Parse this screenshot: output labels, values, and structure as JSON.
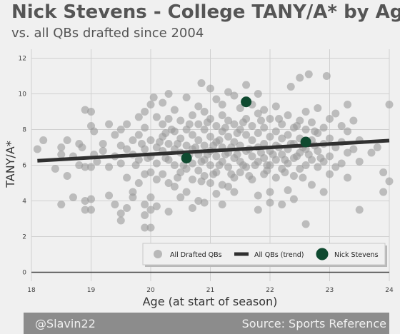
{
  "title": "Nick Stevens - College TANY/A* by Age",
  "subtitle": "vs. all QBs drafted since 2004",
  "footer": {
    "left": "@Slavin22",
    "right": "Source: Sports Reference"
  },
  "colors": {
    "background": "#f0f0f0",
    "grid": "#d0d0d0",
    "points": "#9a9a9a",
    "trend": "#303030",
    "highlight": "#0f4a30",
    "footer": "#8c8c8c"
  },
  "chart_data": {
    "type": "scatter",
    "xlabel": "Age (at start of season)",
    "ylabel": "TANY/A*",
    "xlim": [
      18,
      24
    ],
    "ylim": [
      -0.5,
      12.5
    ],
    "xticks": [
      18,
      19,
      20,
      21,
      22,
      23,
      24
    ],
    "yticks": [
      0,
      2,
      4,
      6,
      8,
      10,
      12
    ],
    "grid": true,
    "legend_position": "lower-right",
    "legend": [
      "All Drafted QBs",
      "All QBs (trend)",
      "Nick Stevens"
    ],
    "trend": {
      "x": [
        18.1,
        24.0
      ],
      "y": [
        6.25,
        7.38
      ]
    },
    "highlight": {
      "name": "Nick Stevens",
      "points": [
        [
          20.6,
          6.4
        ],
        [
          21.6,
          9.55
        ],
        [
          22.6,
          7.3
        ]
      ]
    },
    "series_all": {
      "name": "All Drafted QBs",
      "points": [
        [
          18.1,
          6.9
        ],
        [
          18.2,
          7.4
        ],
        [
          18.4,
          5.8
        ],
        [
          18.5,
          7.0
        ],
        [
          18.5,
          6.6
        ],
        [
          18.6,
          5.4
        ],
        [
          18.5,
          3.8
        ],
        [
          18.6,
          7.4
        ],
        [
          18.7,
          6.5
        ],
        [
          18.7,
          4.2
        ],
        [
          18.8,
          7.2
        ],
        [
          18.8,
          6.0
        ],
        [
          18.9,
          5.9
        ],
        [
          18.9,
          4.0
        ],
        [
          18.9,
          3.5
        ],
        [
          18.85,
          7.0
        ],
        [
          18.9,
          9.1
        ],
        [
          19.0,
          9.0
        ],
        [
          19.0,
          8.2
        ],
        [
          19.0,
          5.9
        ],
        [
          19.0,
          4.1
        ],
        [
          19.0,
          3.5
        ],
        [
          19.05,
          7.9
        ],
        [
          19.05,
          6.6
        ],
        [
          19.1,
          6.2
        ],
        [
          19.2,
          7.2
        ],
        [
          19.2,
          6.8
        ],
        [
          19.3,
          8.3
        ],
        [
          19.3,
          5.9
        ],
        [
          19.3,
          4.3
        ],
        [
          19.4,
          7.7
        ],
        [
          19.4,
          6.5
        ],
        [
          19.4,
          3.8
        ],
        [
          19.5,
          8.0
        ],
        [
          19.5,
          7.1
        ],
        [
          19.5,
          6.1
        ],
        [
          19.5,
          3.3
        ],
        [
          19.5,
          2.9
        ],
        [
          19.6,
          8.3
        ],
        [
          19.6,
          6.9
        ],
        [
          19.6,
          5.3
        ],
        [
          19.6,
          3.6
        ],
        [
          19.7,
          7.4
        ],
        [
          19.7,
          6.6
        ],
        [
          19.7,
          4.5
        ],
        [
          19.7,
          4.2
        ],
        [
          19.8,
          8.7
        ],
        [
          19.8,
          7.7
        ],
        [
          19.8,
          6.3
        ],
        [
          19.8,
          5.0
        ],
        [
          19.9,
          9.0
        ],
        [
          19.9,
          8.1
        ],
        [
          19.9,
          6.9
        ],
        [
          19.9,
          5.5
        ],
        [
          19.9,
          3.8
        ],
        [
          19.9,
          3.2
        ],
        [
          19.9,
          2.5
        ],
        [
          20.0,
          9.4
        ],
        [
          20.0,
          7.4
        ],
        [
          20.0,
          6.5
        ],
        [
          20.0,
          5.6
        ],
        [
          20.0,
          4.2
        ],
        [
          20.0,
          3.5
        ],
        [
          20.0,
          2.5
        ],
        [
          20.05,
          9.8
        ],
        [
          20.1,
          8.7
        ],
        [
          20.1,
          7.0
        ],
        [
          20.1,
          6.1
        ],
        [
          20.1,
          5.2
        ],
        [
          20.1,
          3.7
        ],
        [
          20.2,
          9.5
        ],
        [
          20.2,
          8.3
        ],
        [
          20.2,
          7.6
        ],
        [
          20.2,
          6.8
        ],
        [
          20.2,
          5.5
        ],
        [
          20.3,
          10.0
        ],
        [
          20.3,
          8.6
        ],
        [
          20.3,
          7.2
        ],
        [
          20.3,
          6.3
        ],
        [
          20.3,
          5.0
        ],
        [
          20.3,
          3.4
        ],
        [
          20.4,
          9.1
        ],
        [
          20.4,
          7.9
        ],
        [
          20.4,
          6.9
        ],
        [
          20.4,
          6.0
        ],
        [
          20.4,
          4.8
        ],
        [
          20.5,
          8.5
        ],
        [
          20.5,
          7.5
        ],
        [
          20.5,
          6.7
        ],
        [
          20.5,
          5.6
        ],
        [
          20.5,
          4.2
        ],
        [
          20.6,
          9.8
        ],
        [
          20.6,
          8.0
        ],
        [
          20.6,
          7.1
        ],
        [
          20.6,
          5.8
        ],
        [
          20.6,
          4.5
        ],
        [
          20.7,
          8.8
        ],
        [
          20.7,
          7.7
        ],
        [
          20.7,
          6.9
        ],
        [
          20.7,
          6.1
        ],
        [
          20.7,
          5.2
        ],
        [
          20.7,
          3.6
        ],
        [
          20.8,
          9.3
        ],
        [
          20.8,
          8.3
        ],
        [
          20.8,
          7.4
        ],
        [
          20.8,
          6.6
        ],
        [
          20.8,
          5.7
        ],
        [
          20.8,
          4.0
        ],
        [
          20.85,
          10.6
        ],
        [
          20.9,
          9.0
        ],
        [
          20.9,
          8.0
        ],
        [
          20.9,
          7.1
        ],
        [
          20.9,
          6.3
        ],
        [
          20.9,
          5.4
        ],
        [
          20.9,
          3.9
        ],
        [
          21.0,
          10.3
        ],
        [
          21.0,
          8.6
        ],
        [
          21.0,
          7.6
        ],
        [
          21.0,
          6.8
        ],
        [
          21.0,
          6.0
        ],
        [
          21.0,
          5.0
        ],
        [
          21.1,
          9.7
        ],
        [
          21.1,
          8.2
        ],
        [
          21.1,
          7.3
        ],
        [
          21.1,
          6.5
        ],
        [
          21.1,
          5.6
        ],
        [
          21.1,
          4.4
        ],
        [
          21.2,
          9.4
        ],
        [
          21.2,
          8.8
        ],
        [
          21.2,
          7.9
        ],
        [
          21.2,
          7.0
        ],
        [
          21.2,
          6.2
        ],
        [
          21.2,
          4.9
        ],
        [
          21.2,
          3.8
        ],
        [
          21.3,
          10.1
        ],
        [
          21.3,
          8.5
        ],
        [
          21.3,
          7.6
        ],
        [
          21.3,
          6.7
        ],
        [
          21.3,
          5.9
        ],
        [
          21.3,
          4.8
        ],
        [
          21.4,
          9.9
        ],
        [
          21.4,
          8.3
        ],
        [
          21.4,
          7.3
        ],
        [
          21.4,
          6.4
        ],
        [
          21.4,
          5.3
        ],
        [
          21.4,
          4.5
        ],
        [
          21.5,
          9.2
        ],
        [
          21.5,
          8.0
        ],
        [
          21.5,
          7.1
        ],
        [
          21.5,
          6.2
        ],
        [
          21.5,
          5.6
        ],
        [
          21.6,
          10.5
        ],
        [
          21.6,
          8.6
        ],
        [
          21.6,
          7.7
        ],
        [
          21.6,
          6.8
        ],
        [
          21.6,
          5.9
        ],
        [
          21.7,
          9.4
        ],
        [
          21.7,
          8.2
        ],
        [
          21.7,
          7.4
        ],
        [
          21.7,
          6.5
        ],
        [
          21.7,
          5.2
        ],
        [
          21.8,
          10.0
        ],
        [
          21.8,
          8.9
        ],
        [
          21.8,
          7.8
        ],
        [
          21.8,
          7.0
        ],
        [
          21.8,
          6.2
        ],
        [
          21.8,
          4.3
        ],
        [
          21.8,
          3.5
        ],
        [
          21.9,
          9.1
        ],
        [
          21.9,
          8.1
        ],
        [
          21.9,
          7.2
        ],
        [
          21.9,
          6.4
        ],
        [
          21.9,
          5.5
        ],
        [
          22.0,
          8.6
        ],
        [
          22.0,
          7.6
        ],
        [
          22.0,
          6.8
        ],
        [
          22.0,
          6.0
        ],
        [
          22.0,
          4.5
        ],
        [
          22.0,
          3.9
        ],
        [
          22.1,
          9.3
        ],
        [
          22.1,
          7.9
        ],
        [
          22.1,
          7.1
        ],
        [
          22.1,
          6.3
        ],
        [
          22.1,
          5.3
        ],
        [
          22.2,
          8.3
        ],
        [
          22.2,
          7.5
        ],
        [
          22.2,
          6.6
        ],
        [
          22.2,
          5.8
        ],
        [
          22.2,
          3.8
        ],
        [
          22.3,
          8.8
        ],
        [
          22.3,
          7.7
        ],
        [
          22.3,
          6.9
        ],
        [
          22.3,
          6.1
        ],
        [
          22.3,
          4.6
        ],
        [
          22.35,
          10.4
        ],
        [
          22.4,
          8.1
        ],
        [
          22.4,
          7.2
        ],
        [
          22.4,
          6.4
        ],
        [
          22.4,
          5.4
        ],
        [
          22.4,
          4.1
        ],
        [
          22.5,
          10.9
        ],
        [
          22.5,
          8.5
        ],
        [
          22.5,
          7.5
        ],
        [
          22.5,
          6.7
        ],
        [
          22.5,
          5.8
        ],
        [
          22.6,
          9.0
        ],
        [
          22.6,
          8.0
        ],
        [
          22.6,
          6.9
        ],
        [
          22.6,
          6.0
        ],
        [
          22.6,
          2.7
        ],
        [
          22.65,
          11.1
        ],
        [
          22.7,
          8.4
        ],
        [
          22.7,
          7.4
        ],
        [
          22.7,
          6.3
        ],
        [
          22.7,
          4.9
        ],
        [
          22.8,
          9.2
        ],
        [
          22.8,
          7.8
        ],
        [
          22.8,
          6.8
        ],
        [
          22.8,
          5.9
        ],
        [
          22.9,
          8.1
        ],
        [
          22.9,
          7.2
        ],
        [
          22.9,
          6.2
        ],
        [
          22.9,
          4.5
        ],
        [
          22.95,
          11.0
        ],
        [
          23.0,
          8.6
        ],
        [
          23.0,
          7.5
        ],
        [
          23.0,
          6.5
        ],
        [
          23.0,
          5.5
        ],
        [
          23.1,
          8.9
        ],
        [
          23.1,
          7.0
        ],
        [
          23.1,
          5.9
        ],
        [
          23.2,
          8.2
        ],
        [
          23.2,
          7.3
        ],
        [
          23.2,
          6.1
        ],
        [
          23.3,
          9.4
        ],
        [
          23.3,
          7.9
        ],
        [
          23.3,
          6.7
        ],
        [
          23.3,
          5.3
        ],
        [
          23.4,
          8.5
        ],
        [
          23.4,
          6.9
        ],
        [
          23.5,
          7.4
        ],
        [
          23.5,
          6.2
        ],
        [
          23.5,
          3.5
        ],
        [
          23.7,
          6.7
        ],
        [
          23.8,
          7.0
        ],
        [
          23.9,
          5.6
        ],
        [
          23.9,
          4.5
        ],
        [
          24.0,
          9.4
        ],
        [
          24.0,
          5.1
        ],
        [
          20.15,
          7.3
        ],
        [
          20.25,
          6.4
        ],
        [
          20.45,
          7.2
        ],
        [
          20.55,
          6.0
        ],
        [
          20.65,
          6.6
        ],
        [
          20.75,
          7.0
        ],
        [
          20.85,
          6.2
        ],
        [
          20.95,
          6.6
        ],
        [
          21.05,
          7.1
        ],
        [
          21.15,
          6.0
        ],
        [
          21.25,
          6.6
        ],
        [
          21.35,
          7.0
        ],
        [
          21.45,
          6.6
        ],
        [
          21.55,
          6.0
        ],
        [
          21.65,
          6.9
        ],
        [
          21.75,
          6.0
        ],
        [
          21.85,
          6.7
        ],
        [
          21.95,
          6.0
        ],
        [
          22.05,
          6.6
        ],
        [
          22.15,
          7.0
        ],
        [
          22.25,
          6.3
        ],
        [
          22.35,
          7.2
        ],
        [
          22.45,
          6.5
        ],
        [
          22.55,
          7.0
        ],
        [
          22.65,
          6.6
        ],
        [
          22.75,
          7.1
        ],
        [
          22.85,
          6.4
        ],
        [
          19.95,
          6.4
        ],
        [
          19.85,
          7.2
        ],
        [
          19.75,
          6.0
        ],
        [
          20.35,
          8.0
        ],
        [
          20.65,
          8.3
        ],
        [
          20.95,
          8.4
        ],
        [
          21.25,
          8.1
        ],
        [
          21.55,
          8.4
        ],
        [
          21.85,
          8.5
        ],
        [
          22.15,
          8.6
        ],
        [
          22.45,
          8.2
        ],
        [
          20.25,
          7.8
        ],
        [
          21.45,
          7.8
        ],
        [
          22.75,
          7.9
        ],
        [
          21.05,
          5.5
        ],
        [
          21.35,
          5.5
        ],
        [
          21.65,
          5.4
        ],
        [
          21.95,
          5.7
        ],
        [
          22.25,
          5.6
        ],
        [
          20.45,
          5.3
        ],
        [
          20.85,
          5.1
        ],
        [
          22.55,
          5.3
        ],
        [
          21.15,
          7.4
        ]
      ]
    }
  },
  "axes": {
    "x_tick_labels": [
      "18",
      "19",
      "20",
      "21",
      "22",
      "23",
      "24"
    ],
    "y_tick_labels": [
      "0",
      "2",
      "4",
      "6",
      "8",
      "10",
      "12"
    ]
  }
}
